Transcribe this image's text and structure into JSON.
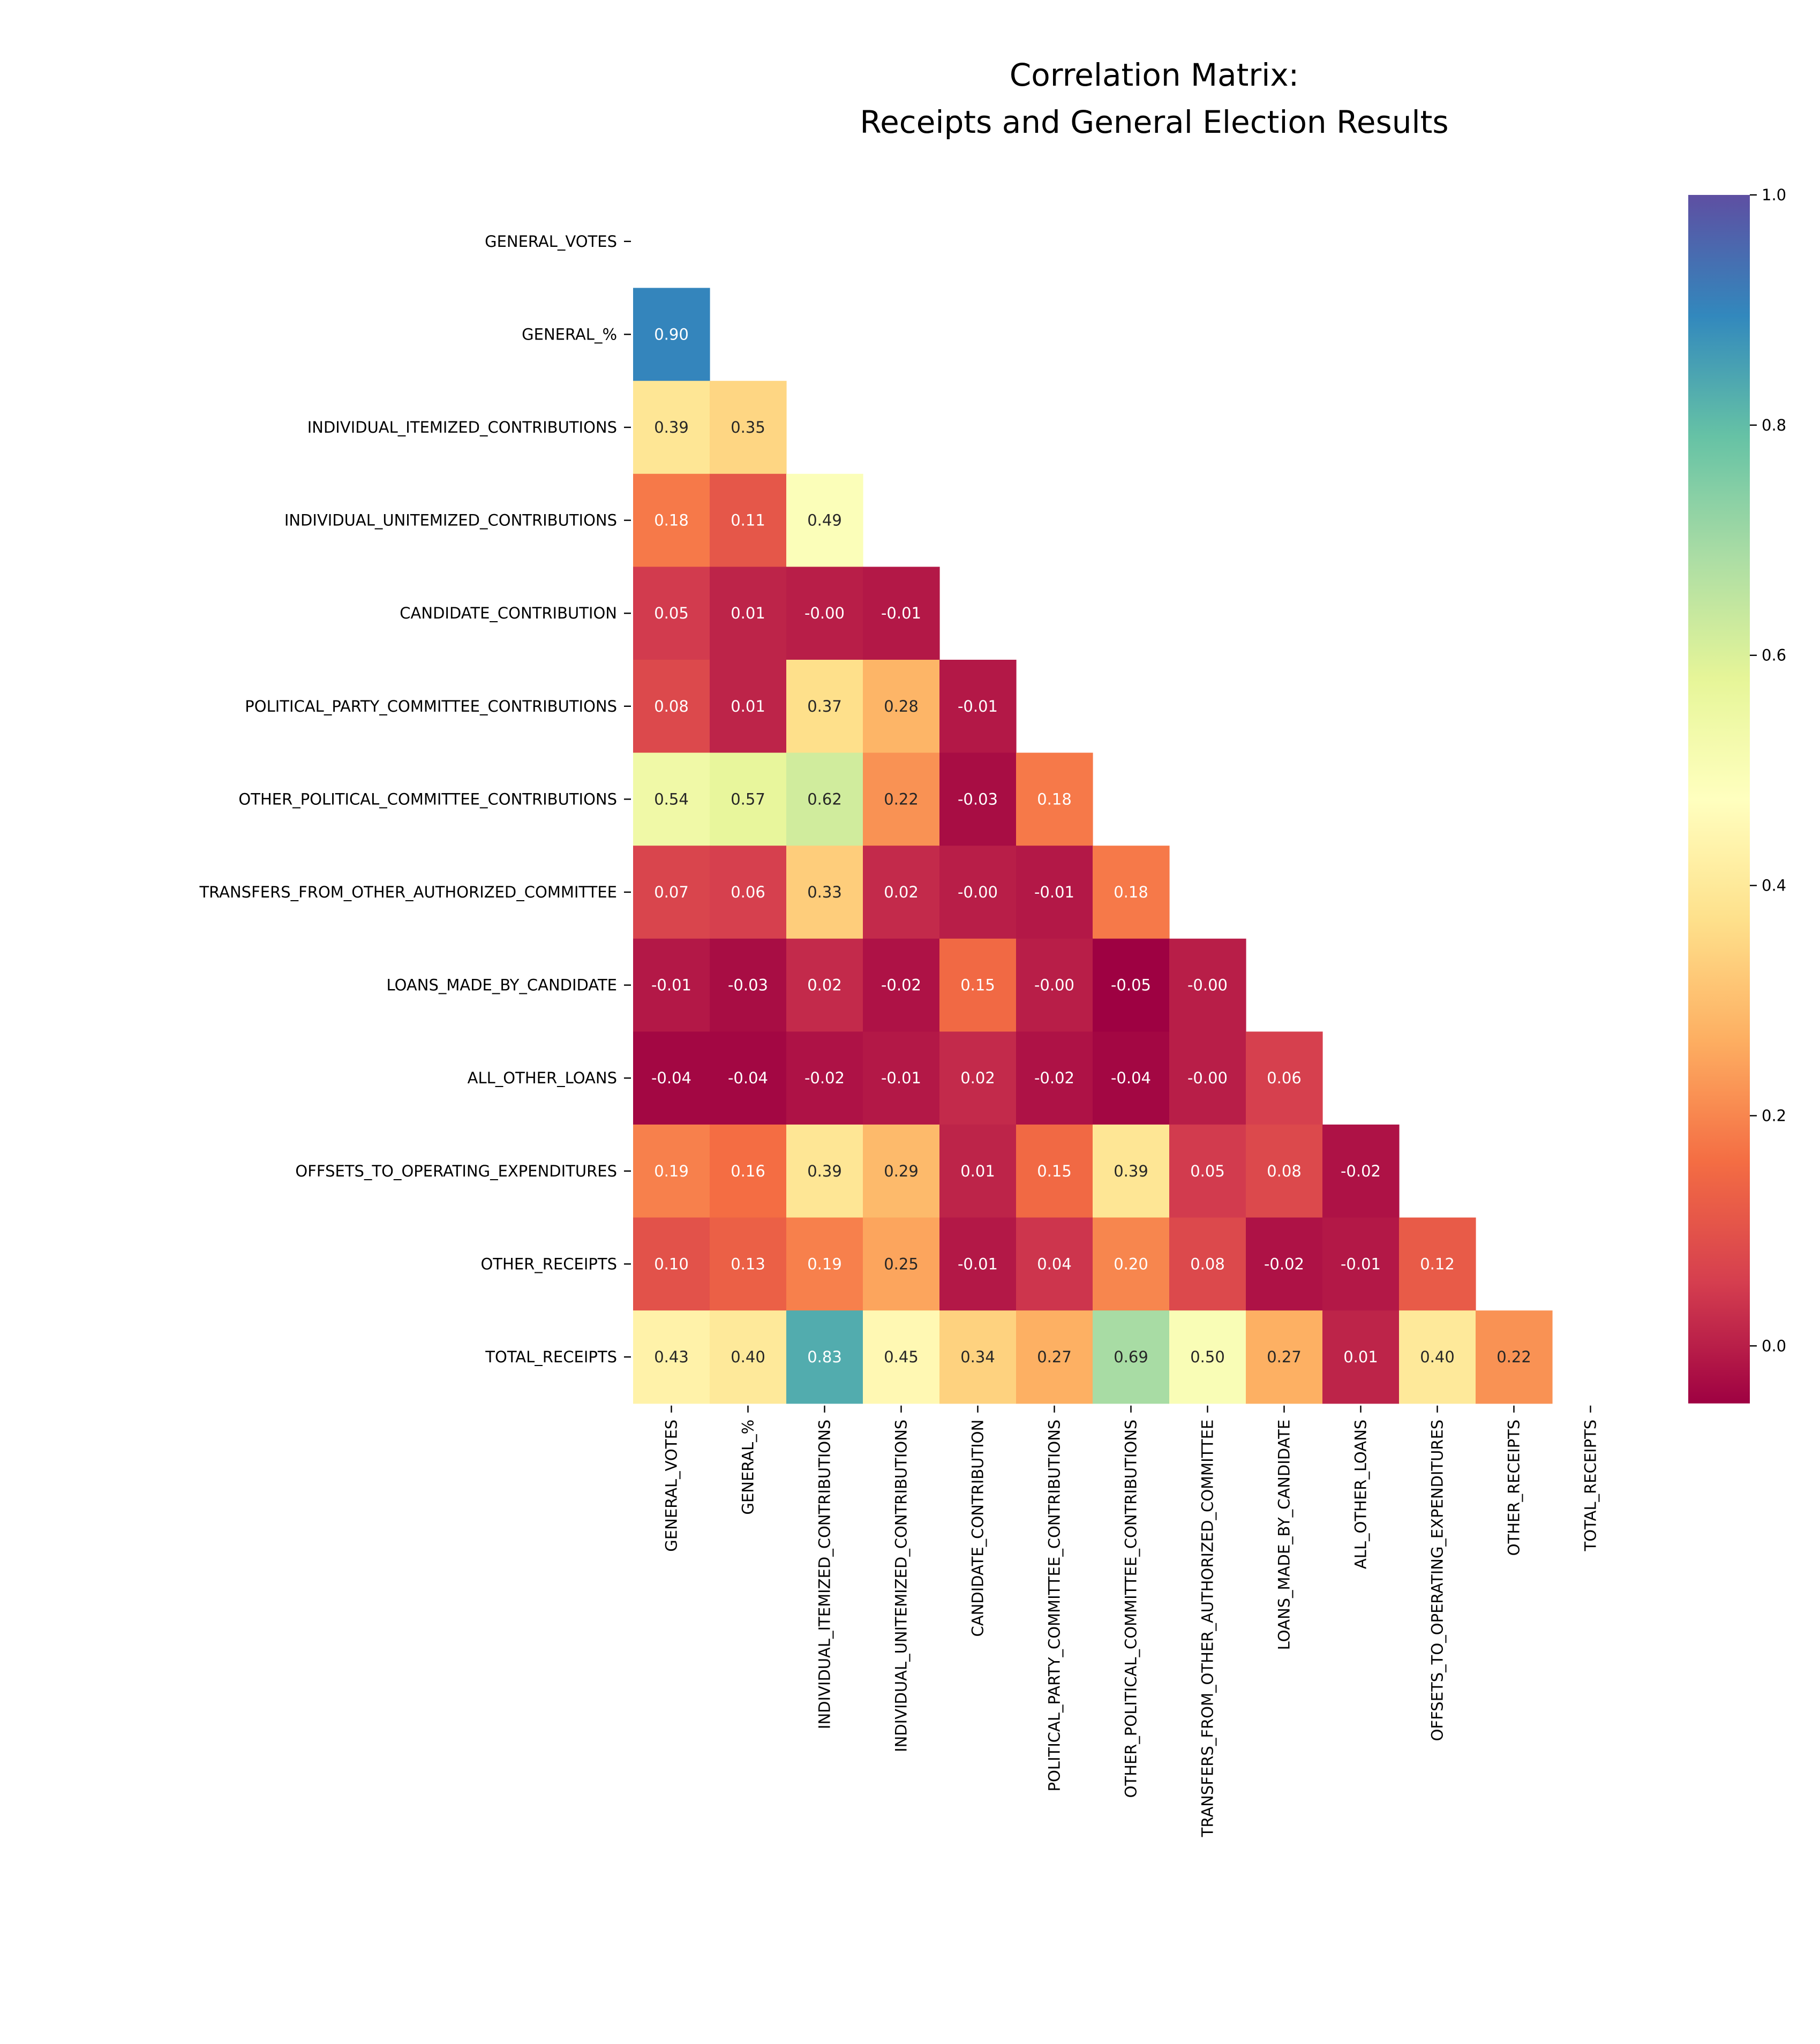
{
  "chart_data": {
    "type": "heatmap",
    "title": "Correlation Matrix:\nReceipts and General Election Results",
    "title_lines": [
      "Correlation Matrix:",
      "Receipts and General Election Results"
    ],
    "labels": [
      "GENERAL_VOTES",
      "GENERAL_%",
      "INDIVIDUAL_ITEMIZED_CONTRIBUTIONS",
      "INDIVIDUAL_UNITEMIZED_CONTRIBUTIONS",
      "CANDIDATE_CONTRIBUTION",
      "POLITICAL_PARTY_COMMITTEE_CONTRIBUTIONS",
      "OTHER_POLITICAL_COMMITTEE_CONTRIBUTIONS",
      "TRANSFERS_FROM_OTHER_AUTHORIZED_COMMITTEE",
      "LOANS_MADE_BY_CANDIDATE",
      "ALL_OTHER_LOANS",
      "OFFSETS_TO_OPERATING_EXPENDITURES",
      "OTHER_RECEIPTS",
      "TOTAL_RECEIPTS"
    ],
    "mask": "upper triangle including diagonal",
    "lower_triangle": [
      [],
      [
        "0.90"
      ],
      [
        "0.39",
        "0.35"
      ],
      [
        "0.18",
        "0.11",
        "0.49"
      ],
      [
        "0.05",
        "0.01",
        "-0.00",
        "-0.01"
      ],
      [
        "0.08",
        "0.01",
        "0.37",
        "0.28",
        "-0.01"
      ],
      [
        "0.54",
        "0.57",
        "0.62",
        "0.22",
        "-0.03",
        "0.18"
      ],
      [
        "0.07",
        "0.06",
        "0.33",
        "0.02",
        "-0.00",
        "-0.01",
        "0.18"
      ],
      [
        "-0.01",
        "-0.03",
        "0.02",
        "-0.02",
        "0.15",
        "-0.00",
        "-0.05",
        "-0.00"
      ],
      [
        "-0.04",
        "-0.04",
        "-0.02",
        "-0.01",
        "0.02",
        "-0.02",
        "-0.04",
        "-0.00",
        "0.06"
      ],
      [
        "0.19",
        "0.16",
        "0.39",
        "0.29",
        "0.01",
        "0.15",
        "0.39",
        "0.05",
        "0.08",
        "-0.02"
      ],
      [
        "0.10",
        "0.13",
        "0.19",
        "0.25",
        "-0.01",
        "0.04",
        "0.20",
        "0.08",
        "-0.02",
        "-0.01",
        "0.12"
      ],
      [
        "0.43",
        "0.40",
        "0.83",
        "0.45",
        "0.34",
        "0.27",
        "0.69",
        "0.50",
        "0.27",
        "0.01",
        "0.40",
        "0.22"
      ]
    ],
    "colormap": "Spectral",
    "colormap_stops": [
      "#9e0142",
      "#d53e4f",
      "#f46d43",
      "#fdae61",
      "#fee08b",
      "#ffffbf",
      "#e6f598",
      "#abdda4",
      "#66c2a5",
      "#3288bd",
      "#5e4fa2"
    ],
    "vlim": [
      -0.05,
      1.0
    ],
    "colorbar_ticks": [
      "0.0",
      "0.2",
      "0.4",
      "0.6",
      "0.8",
      "1.0"
    ],
    "grid": false
  }
}
